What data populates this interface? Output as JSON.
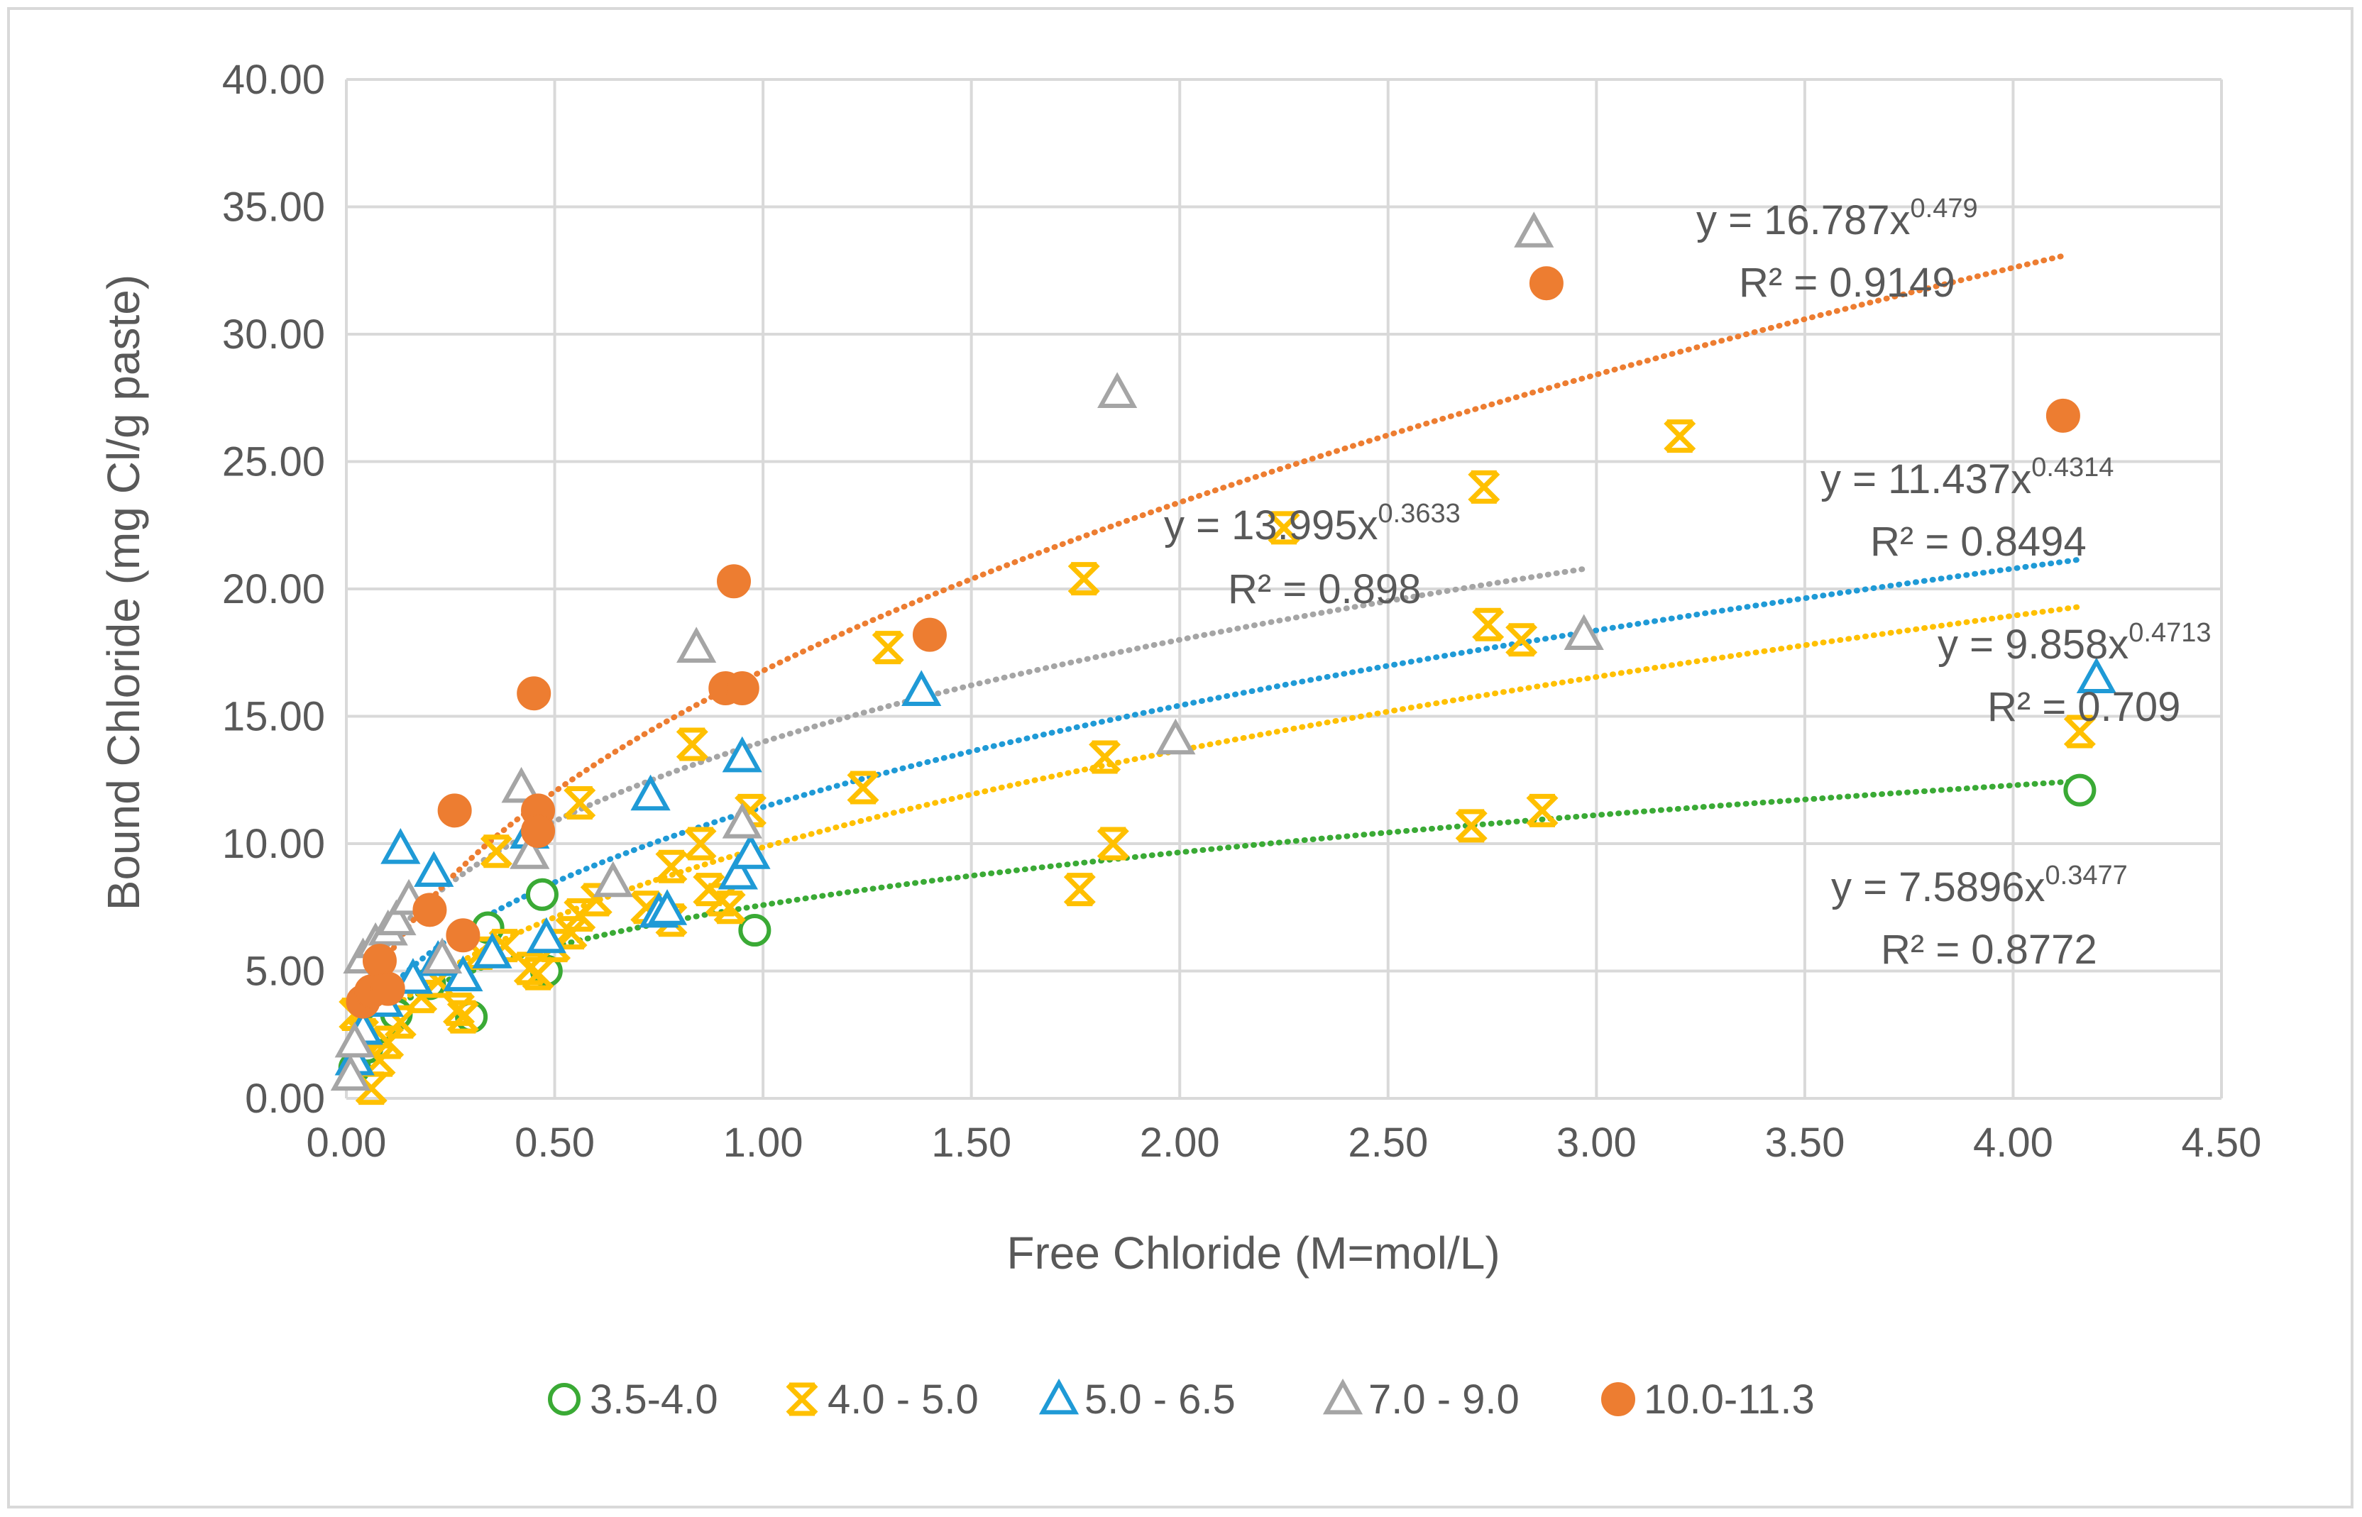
{
  "chart_data": {
    "type": "scatter",
    "title": "",
    "xlabel": "Free Chloride (M=mol/L)",
    "ylabel": "Bound Chloride (mg Cl/g paste)",
    "xlim": [
      0,
      4.5
    ],
    "ylim": [
      0,
      40
    ],
    "x_ticks": [
      "0.00",
      "0.50",
      "1.00",
      "1.50",
      "2.00",
      "2.50",
      "3.00",
      "3.50",
      "4.00",
      "4.50"
    ],
    "y_ticks": [
      "0.00",
      "5.00",
      "10.00",
      "15.00",
      "20.00",
      "25.00",
      "30.00",
      "35.00",
      "40.00"
    ],
    "grid": "vertical and horizontal",
    "legend_position": "bottom",
    "series": [
      {
        "name": "3.5-4.0",
        "marker": "circle-open",
        "color": "#3aaa35",
        "points": [
          [
            0.02,
            1.2
          ],
          [
            0.05,
            2.0
          ],
          [
            0.08,
            2.8
          ],
          [
            0.12,
            3.3
          ],
          [
            0.2,
            4.5
          ],
          [
            0.3,
            3.2
          ],
          [
            0.34,
            6.7
          ],
          [
            0.47,
            8.0
          ],
          [
            0.48,
            5.0
          ],
          [
            0.98,
            6.6
          ],
          [
            4.16,
            12.1
          ]
        ],
        "trend": {
          "a": 7.5896,
          "b": 0.3477,
          "x_range": [
            0.02,
            4.16
          ],
          "equation": "y = 7.5896x",
          "exponent": "0.3477",
          "r2": "R² = 0.8772"
        }
      },
      {
        "name": "4.0 - 5.0",
        "marker": "star",
        "color": "#ffc000",
        "points": [
          [
            0.02,
            3.3
          ],
          [
            0.04,
            2.5
          ],
          [
            0.06,
            0.4
          ],
          [
            0.08,
            1.5
          ],
          [
            0.1,
            2.2
          ],
          [
            0.13,
            3.0
          ],
          [
            0.18,
            4.0
          ],
          [
            0.22,
            4.6
          ],
          [
            0.27,
            3.5
          ],
          [
            0.28,
            3.2
          ],
          [
            0.32,
            5.7
          ],
          [
            0.38,
            6.0
          ],
          [
            0.44,
            5.1
          ],
          [
            0.46,
            4.9
          ],
          [
            0.5,
            6.0
          ],
          [
            0.54,
            6.5
          ],
          [
            0.56,
            7.2
          ],
          [
            0.6,
            7.8
          ],
          [
            0.36,
            9.7
          ],
          [
            0.56,
            11.6
          ],
          [
            0.72,
            7.5
          ],
          [
            0.78,
            7.0
          ],
          [
            0.78,
            9.1
          ],
          [
            0.83,
            13.9
          ],
          [
            0.85,
            10.0
          ],
          [
            0.87,
            8.2
          ],
          [
            0.9,
            7.8
          ],
          [
            0.92,
            7.5
          ],
          [
            0.97,
            11.3
          ],
          [
            1.24,
            12.2
          ],
          [
            1.3,
            17.7
          ],
          [
            1.76,
            8.2
          ],
          [
            1.77,
            20.4
          ],
          [
            1.82,
            13.4
          ],
          [
            1.84,
            10.0
          ],
          [
            2.25,
            22.4
          ],
          [
            2.7,
            10.7
          ],
          [
            2.73,
            24.0
          ],
          [
            2.74,
            18.6
          ],
          [
            2.82,
            18.0
          ],
          [
            2.87,
            11.3
          ],
          [
            3.2,
            26.0
          ],
          [
            4.16,
            14.4
          ]
        ],
        "trend": {
          "a": 9.858,
          "b": 0.4713,
          "x_range": [
            0.02,
            4.16
          ],
          "equation": "y = 9.858x",
          "exponent": "0.4713",
          "r2": "R² = 0.709"
        }
      },
      {
        "name": "5.0 - 6.5",
        "marker": "triangle-open",
        "color": "#1f9ad6",
        "points": [
          [
            0.02,
            1.5
          ],
          [
            0.04,
            2.7
          ],
          [
            0.09,
            3.8
          ],
          [
            0.13,
            9.8
          ],
          [
            0.16,
            4.7
          ],
          [
            0.21,
            8.9
          ],
          [
            0.22,
            5.4
          ],
          [
            0.28,
            4.8
          ],
          [
            0.35,
            5.7
          ],
          [
            0.44,
            10.4
          ],
          [
            0.48,
            6.3
          ],
          [
            0.73,
            11.9
          ],
          [
            0.75,
            7.3
          ],
          [
            0.77,
            7.4
          ],
          [
            0.94,
            8.8
          ],
          [
            0.95,
            13.4
          ],
          [
            0.97,
            9.6
          ],
          [
            1.38,
            16.0
          ],
          [
            4.2,
            16.5
          ]
        ],
        "trend": {
          "a": 11.437,
          "b": 0.4314,
          "x_range": [
            0.02,
            4.17
          ],
          "equation": "y = 11.437x",
          "exponent": "0.4314",
          "r2": "R² = 0.8494"
        }
      },
      {
        "name": "7.0 - 9.0",
        "marker": "triangle-open",
        "color": "#a5a5a5",
        "points": [
          [
            0.01,
            0.9
          ],
          [
            0.02,
            2.2
          ],
          [
            0.04,
            5.5
          ],
          [
            0.07,
            6.1
          ],
          [
            0.1,
            6.6
          ],
          [
            0.12,
            7.0
          ],
          [
            0.15,
            7.8
          ],
          [
            0.23,
            5.5
          ],
          [
            0.42,
            12.2
          ],
          [
            0.44,
            9.6
          ],
          [
            0.64,
            8.5
          ],
          [
            0.84,
            17.7
          ],
          [
            0.95,
            10.8
          ],
          [
            1.85,
            27.7
          ],
          [
            1.99,
            14.1
          ],
          [
            2.85,
            34.0
          ],
          [
            2.97,
            18.2
          ]
        ],
        "trend": {
          "a": 13.995,
          "b": 0.3633,
          "x_range": [
            0.02,
            2.98
          ],
          "equation": "y = 13.995x",
          "exponent": "0.3633",
          "r2": "R² = 0.898"
        }
      },
      {
        "name": "10.0-11.3",
        "marker": "circle-filled",
        "color": "#ed7d31",
        "points": [
          [
            0.04,
            3.8
          ],
          [
            0.06,
            4.2
          ],
          [
            0.08,
            5.4
          ],
          [
            0.1,
            4.3
          ],
          [
            0.2,
            7.4
          ],
          [
            0.26,
            11.3
          ],
          [
            0.28,
            6.4
          ],
          [
            0.45,
            15.9
          ],
          [
            0.46,
            11.3
          ],
          [
            0.46,
            10.5
          ],
          [
            0.91,
            16.1
          ],
          [
            0.93,
            20.3
          ],
          [
            0.95,
            16.1
          ],
          [
            1.4,
            18.2
          ],
          [
            2.88,
            32.0
          ],
          [
            4.12,
            26.8
          ]
        ],
        "trend": {
          "a": 16.787,
          "b": 0.479,
          "x_range": [
            0.02,
            4.12
          ],
          "equation": "y = 16.787x",
          "exponent": "0.479",
          "r2": "R² = 0.9149"
        }
      }
    ]
  }
}
